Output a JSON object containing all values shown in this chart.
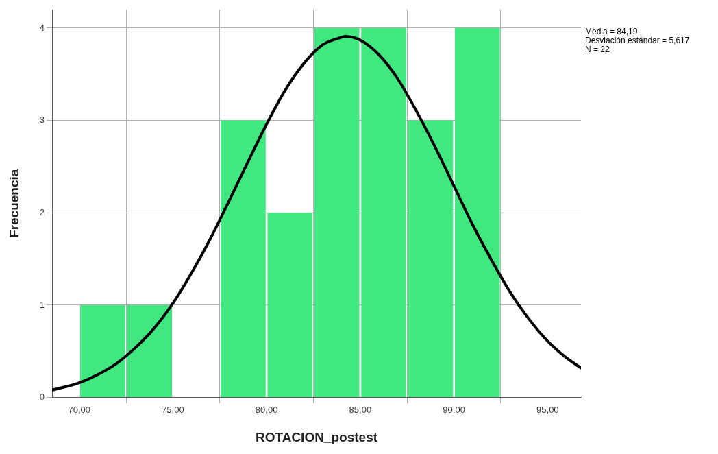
{
  "chart_data": {
    "type": "histogram",
    "xlabel": "ROTACION_postest",
    "ylabel": "Frecuencia",
    "bins": [
      70,
      72.5,
      75,
      77.5,
      80,
      82.5,
      85,
      87.5,
      90,
      92.5
    ],
    "values": [
      1,
      1,
      0,
      3,
      2,
      4,
      4,
      3,
      4
    ],
    "color": "#40e87f",
    "series": [
      {
        "type": "line",
        "color": "#000000",
        "x": [
          68.55,
          70,
          71,
          72,
          73,
          74,
          75,
          76,
          77,
          78,
          79,
          80,
          81,
          82,
          83,
          84,
          84.19,
          85,
          86,
          87,
          88,
          89,
          90,
          91,
          92,
          93,
          94,
          95,
          96,
          96.78
        ],
        "values": [
          0.08,
          0.16,
          0.25,
          0.37,
          0.54,
          0.75,
          1.02,
          1.35,
          1.72,
          2.13,
          2.55,
          2.96,
          3.33,
          3.62,
          3.82,
          3.9,
          3.91,
          3.87,
          3.71,
          3.45,
          3.1,
          2.71,
          2.29,
          1.87,
          1.49,
          1.14,
          0.85,
          0.61,
          0.43,
          0.32
        ]
      }
    ],
    "xlim": [
      68.55,
      96.78
    ],
    "xticks": [
      {
        "value": 70,
        "label": "70,00"
      },
      {
        "value": 75,
        "label": "75,00"
      },
      {
        "value": 80,
        "label": "80,00"
      },
      {
        "value": 85,
        "label": "85,00"
      },
      {
        "value": 90,
        "label": "90,00"
      },
      {
        "value": 95,
        "label": "95,00"
      }
    ],
    "ylim": [
      0,
      4.2
    ],
    "yticks": [
      0,
      1,
      2,
      3,
      4
    ],
    "grid": true,
    "legend": false,
    "marker": "none",
    "line_style": "solid",
    "annotations": [
      "Media = 84,19",
      "Desviación estándar = 5,617",
      "N = 22"
    ]
  }
}
